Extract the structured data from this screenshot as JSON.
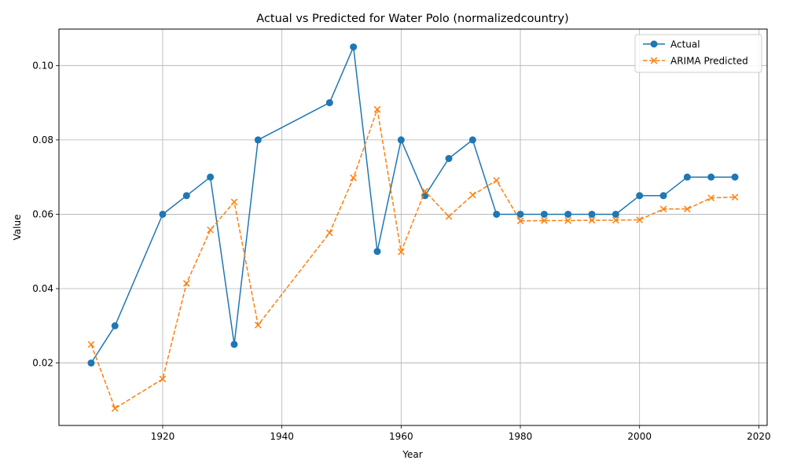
{
  "chart_data": {
    "type": "line",
    "title": "Actual vs Predicted for Water Polo (normalizedcountry)",
    "xlabel": "Year",
    "ylabel": "Value",
    "xlim": [
      1902.6,
      2021.4
    ],
    "ylim": [
      0.0032,
      0.1098
    ],
    "x_ticks": [
      1920,
      1940,
      1960,
      1980,
      2000,
      2020
    ],
    "y_ticks": [
      0.02,
      0.04,
      0.06,
      0.08,
      0.1
    ],
    "grid": true,
    "legend_position": "top-right",
    "x": [
      1908,
      1912,
      1920,
      1924,
      1928,
      1932,
      1936,
      1948,
      1952,
      1956,
      1960,
      1964,
      1968,
      1972,
      1976,
      1980,
      1984,
      1988,
      1992,
      1996,
      2000,
      2004,
      2008,
      2012,
      2016
    ],
    "series": [
      {
        "name": "Actual",
        "color": "#1f77b4",
        "marker": "circle",
        "line_style": "solid",
        "values": [
          0.02,
          0.03,
          0.06,
          0.065,
          0.07,
          0.025,
          0.08,
          0.09,
          0.105,
          0.05,
          0.08,
          0.065,
          0.075,
          0.08,
          0.06,
          0.06,
          0.06,
          0.06,
          0.06,
          0.06,
          0.065,
          0.065,
          0.07,
          0.07,
          0.07
        ]
      },
      {
        "name": "ARIMA Predicted",
        "color": "#ff7f0e",
        "marker": "x",
        "line_style": "dashed",
        "values": [
          0.025,
          0.0078,
          0.0157,
          0.0414,
          0.0558,
          0.0633,
          0.0302,
          0.055,
          0.0698,
          0.0882,
          0.0499,
          0.0662,
          0.0594,
          0.0652,
          0.0691,
          0.0582,
          0.0583,
          0.0583,
          0.0584,
          0.0584,
          0.0585,
          0.0614,
          0.0614,
          0.0644,
          0.0646
        ]
      }
    ]
  }
}
